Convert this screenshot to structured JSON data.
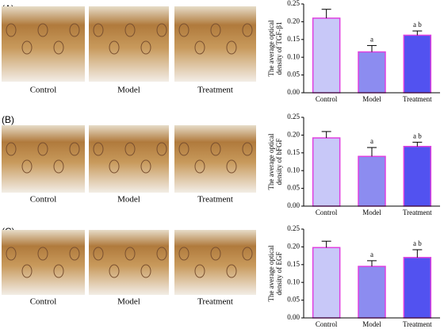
{
  "panels": [
    {
      "label": "(A)",
      "images": [
        "Control",
        "Model",
        "Treatment"
      ]
    },
    {
      "label": "(B)",
      "images": [
        "Control",
        "Model",
        "Treatment"
      ]
    },
    {
      "label": "(C)",
      "images": [
        "Control",
        "Model",
        "Treatment"
      ]
    }
  ],
  "chart_data": [
    {
      "type": "bar",
      "ylabel": [
        "The average optical",
        "density of TGF-β1"
      ],
      "categories": [
        "Control",
        "Model",
        "Treatment"
      ],
      "values": [
        0.21,
        0.115,
        0.162
      ],
      "errors": [
        0.025,
        0.018,
        0.012
      ],
      "value_annotations": [
        null,
        "a",
        "a b"
      ],
      "colors": [
        "#c8c8f8",
        "#8c8cf0",
        "#5252f0"
      ],
      "edgecolor": "#e040e0",
      "ylim": [
        0,
        0.25
      ],
      "yticks": [
        {
          "value": 0,
          "label": "0.00"
        },
        {
          "value": 0.05,
          "label": "0.05"
        },
        {
          "value": 0.1,
          "label": "0.10"
        },
        {
          "value": 0.15,
          "label": "0.15"
        },
        {
          "value": 0.2,
          "label": "0.20"
        },
        {
          "value": 0.25,
          "label": "0.25"
        }
      ]
    },
    {
      "type": "bar",
      "ylabel": [
        "The average optical",
        "density of bFGF"
      ],
      "categories": [
        "Control",
        "Model",
        "Treatment"
      ],
      "values": [
        0.192,
        0.14,
        0.168
      ],
      "errors": [
        0.018,
        0.025,
        0.012
      ],
      "value_annotations": [
        null,
        "a",
        "a b"
      ],
      "colors": [
        "#c8c8f8",
        "#8c8cf0",
        "#5252f0"
      ],
      "edgecolor": "#e040e0",
      "ylim": [
        0,
        0.25
      ],
      "yticks": [
        {
          "value": 0,
          "label": "0.00"
        },
        {
          "value": 0.05,
          "label": "0.05"
        },
        {
          "value": 0.1,
          "label": "0.10"
        },
        {
          "value": 0.15,
          "label": "0.15"
        },
        {
          "value": 0.2,
          "label": "0.20"
        },
        {
          "value": 0.25,
          "label": "0.25"
        }
      ]
    },
    {
      "type": "bar",
      "ylabel": [
        "The average optical",
        "density of EGF"
      ],
      "categories": [
        "Control",
        "Model",
        "Treatment"
      ],
      "values": [
        0.198,
        0.145,
        0.17
      ],
      "errors": [
        0.018,
        0.016,
        0.022
      ],
      "value_annotations": [
        null,
        "a",
        "a b"
      ],
      "colors": [
        "#c8c8f8",
        "#8c8cf0",
        "#5252f0"
      ],
      "edgecolor": "#e040e0",
      "ylim": [
        0,
        0.25
      ],
      "yticks": [
        {
          "value": 0,
          "label": "0.00"
        },
        {
          "value": 0.05,
          "label": "0.05"
        },
        {
          "value": 0.1,
          "label": "0.10"
        },
        {
          "value": 0.15,
          "label": "0.15"
        },
        {
          "value": 0.2,
          "label": "0.20"
        },
        {
          "value": 0.25,
          "label": "0.25"
        }
      ]
    }
  ]
}
